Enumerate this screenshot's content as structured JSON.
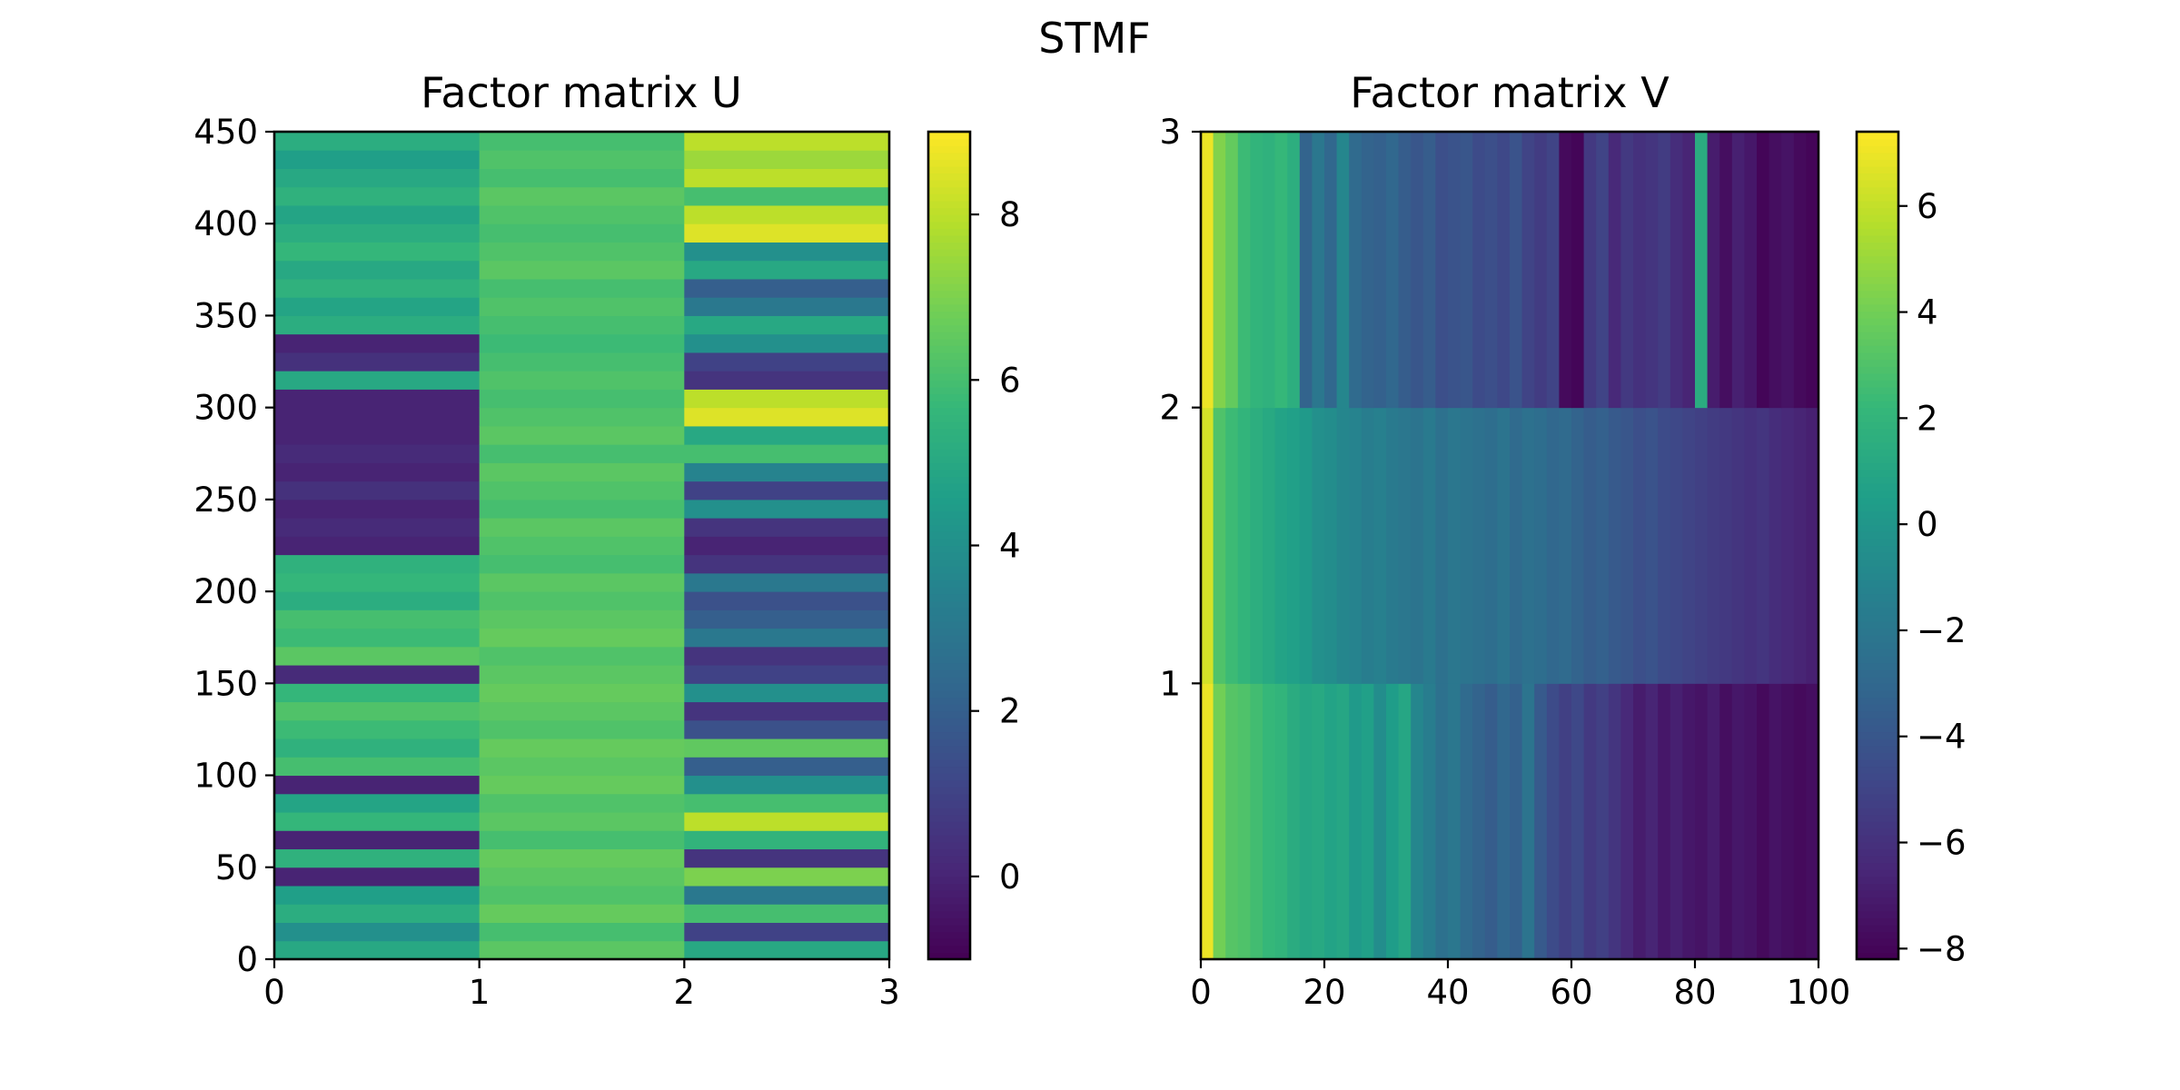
{
  "figure": {
    "title": "STMF"
  },
  "colors": {
    "viridis": [
      "#440154",
      "#482878",
      "#3e4989",
      "#31688e",
      "#26828e",
      "#1f9e89",
      "#35b779",
      "#6ece58",
      "#b5de2b",
      "#fde725"
    ],
    "frame": "#000000"
  },
  "chart_data": [
    {
      "type": "heatmap",
      "title": "Factor matrix U",
      "colormap": "viridis",
      "xlim": [
        0,
        3
      ],
      "ylim": [
        0,
        450
      ],
      "xticks": [
        "0",
        "1",
        "2",
        "3"
      ],
      "yticks": [
        "0",
        "50",
        "100",
        "150",
        "200",
        "250",
        "300",
        "350",
        "400",
        "450"
      ],
      "vrange": [
        -1,
        9
      ],
      "colorbar_ticks": [
        "0",
        "2",
        "4",
        "6",
        "8"
      ],
      "row_step": 10,
      "columns": [
        [
          5.0,
          4.0,
          5.2,
          4.6,
          0.0,
          5.4,
          0.0,
          5.6,
          4.8,
          0.0,
          6.0,
          5.4,
          5.8,
          6.2,
          5.6,
          0.2,
          6.4,
          5.8,
          6.0,
          5.2,
          5.6,
          5.4,
          0.0,
          0.2,
          0.0,
          0.4,
          0.0,
          0.2,
          0.0,
          0.0,
          0.0,
          5.0,
          0.4,
          0.0,
          5.2,
          4.8,
          5.4,
          5.0,
          5.6,
          5.2,
          4.8,
          5.4,
          5.0,
          4.6,
          5.2
        ],
        [
          6.4,
          6.0,
          6.6,
          6.2,
          6.4,
          6.6,
          6.0,
          6.4,
          6.2,
          6.6,
          6.4,
          6.6,
          6.2,
          6.4,
          6.6,
          6.4,
          6.2,
          6.6,
          6.4,
          6.2,
          6.4,
          6.0,
          6.2,
          6.4,
          6.0,
          6.2,
          6.4,
          6.0,
          6.4,
          6.2,
          6.0,
          6.2,
          6.0,
          5.8,
          6.0,
          6.2,
          6.0,
          6.4,
          6.2,
          6.0,
          6.2,
          6.4,
          6.0,
          6.2,
          6.0
        ],
        [
          5.0,
          1.0,
          6.0,
          3.0,
          7.0,
          0.5,
          5.5,
          8.0,
          6.0,
          4.0,
          2.0,
          6.5,
          1.5,
          0.5,
          4.0,
          1.0,
          0.5,
          3.0,
          2.0,
          1.5,
          3.0,
          0.5,
          0.0,
          0.5,
          4.0,
          1.0,
          3.5,
          6.0,
          5.0,
          8.5,
          8.0,
          0.5,
          1.0,
          4.0,
          5.0,
          3.0,
          2.0,
          5.0,
          4.0,
          8.5,
          8.0,
          6.0,
          8.0,
          7.5,
          8.0
        ]
      ]
    },
    {
      "type": "heatmap",
      "title": "Factor matrix V",
      "colormap": "viridis",
      "xlim": [
        0,
        100
      ],
      "ylim": [
        0,
        3
      ],
      "xticks": [
        "0",
        "20",
        "40",
        "60",
        "80",
        "100"
      ],
      "yticks": [
        "1",
        "2",
        "3"
      ],
      "vrange": [
        -8.2,
        7.4
      ],
      "colorbar_ticks": [
        "6",
        "4",
        "2",
        "0",
        "−2",
        "−4",
        "−6",
        "−8"
      ],
      "colorbar_tick_values": [
        6,
        4,
        2,
        0,
        -2,
        -4,
        -6,
        -8
      ],
      "col_step": 2,
      "rows": [
        [
          7.0,
          4.0,
          3.2,
          3.0,
          2.6,
          2.2,
          2.0,
          1.4,
          1.0,
          1.2,
          0.8,
          1.0,
          0.2,
          0.6,
          -0.6,
          0.4,
          1.0,
          -1.0,
          -1.6,
          -2.4,
          -2.0,
          -2.8,
          -3.2,
          -3.6,
          -3.0,
          -3.4,
          -2.2,
          -3.8,
          -4.6,
          -5.2,
          -4.8,
          -5.6,
          -5.2,
          -5.8,
          -6.4,
          -7.0,
          -6.6,
          -7.2,
          -6.8,
          -7.2,
          -7.4,
          -7.0,
          -7.6,
          -7.2,
          -7.4,
          -7.8,
          -7.4,
          -7.6,
          -7.8,
          -7.6
        ],
        [
          6.4,
          3.0,
          2.4,
          2.0,
          1.6,
          1.2,
          0.8,
          0.6,
          0.2,
          -0.4,
          -0.6,
          -1.0,
          -1.2,
          -1.6,
          -1.4,
          -1.8,
          -2.0,
          -2.2,
          -1.8,
          -2.4,
          -2.0,
          -2.2,
          -2.4,
          -2.6,
          -2.2,
          -2.8,
          -2.4,
          -2.6,
          -3.0,
          -2.8,
          -3.2,
          -3.6,
          -3.4,
          -3.8,
          -4.0,
          -4.4,
          -4.2,
          -4.6,
          -4.8,
          -5.0,
          -5.2,
          -5.4,
          -5.6,
          -5.8,
          -6.0,
          -5.8,
          -6.2,
          -6.4,
          -6.6,
          -6.8
        ],
        [
          7.0,
          4.4,
          3.6,
          2.4,
          2.0,
          1.8,
          2.2,
          1.6,
          -3.2,
          -2.0,
          -3.0,
          -1.0,
          -2.8,
          -3.2,
          -3.4,
          -3.0,
          -3.6,
          -4.0,
          -3.6,
          -4.4,
          -4.2,
          -4.0,
          -4.6,
          -4.4,
          -4.8,
          -4.2,
          -5.0,
          -5.4,
          -5.0,
          -7.8,
          -8.0,
          -5.6,
          -5.0,
          -6.4,
          -5.6,
          -6.0,
          -5.8,
          -5.4,
          -6.2,
          -6.6,
          1.4,
          -7.0,
          -7.6,
          -6.8,
          -7.2,
          -8.0,
          -7.6,
          -7.4,
          -7.8,
          -8.0
        ]
      ]
    }
  ]
}
